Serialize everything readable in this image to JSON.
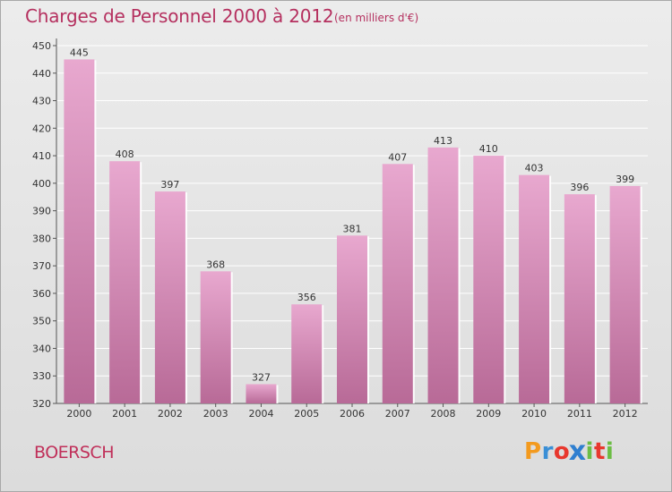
{
  "title": "Charges de Personnel 2000 à 2012",
  "subtitle": "(en milliers d'€)",
  "commune": "BOERSCH",
  "brand": {
    "letters": [
      "P",
      "r",
      "o",
      "x",
      "i",
      "t",
      "i"
    ],
    "colors": [
      "#f39a1e",
      "#3a8fd6",
      "#e8382e",
      "#2f7fd0",
      "#6cbd45",
      "#e8382e",
      "#6cbd45"
    ]
  },
  "colors": {
    "bar_top": "#e8a8cf",
    "bar_bottom": "#b86a97",
    "accent": "#b5305f"
  },
  "chart_data": {
    "type": "bar",
    "categories": [
      "2000",
      "2001",
      "2002",
      "2003",
      "2004",
      "2005",
      "2006",
      "2007",
      "2008",
      "2009",
      "2010",
      "2011",
      "2012"
    ],
    "values": [
      445,
      408,
      397,
      368,
      327,
      356,
      381,
      407,
      413,
      410,
      403,
      396,
      399
    ],
    "ylim": [
      320,
      450
    ],
    "yticks": [
      320,
      330,
      340,
      350,
      360,
      370,
      380,
      390,
      400,
      410,
      420,
      430,
      440,
      450
    ],
    "grid": true,
    "data_labels": true
  }
}
